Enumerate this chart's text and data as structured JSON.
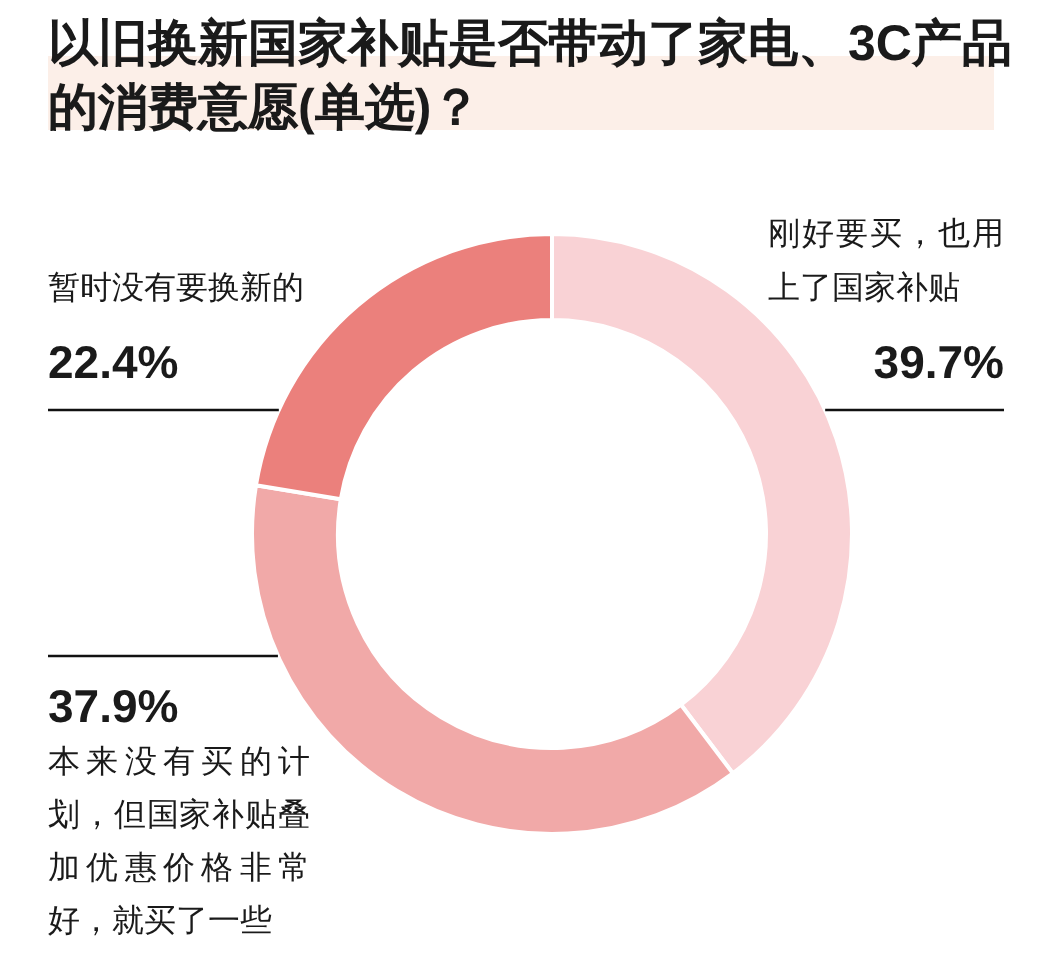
{
  "chart_data": {
    "type": "donut",
    "title": "以旧换新国家补贴是否带动了家电、3C产品的消费意愿(单选)？",
    "categories": [
      "刚好要买，也用上了国家补贴",
      "本来没有买的计划，但国家补贴叠加优惠价格非常好，就买了一些",
      "暂时没有要换新的"
    ],
    "values": [
      39.7,
      37.9,
      22.4
    ],
    "colors": [
      "#f9d2d5",
      "#f1a9a8",
      "#eb807c"
    ],
    "value_labels": [
      "39.7%",
      "37.9%",
      "22.4%"
    ]
  }
}
